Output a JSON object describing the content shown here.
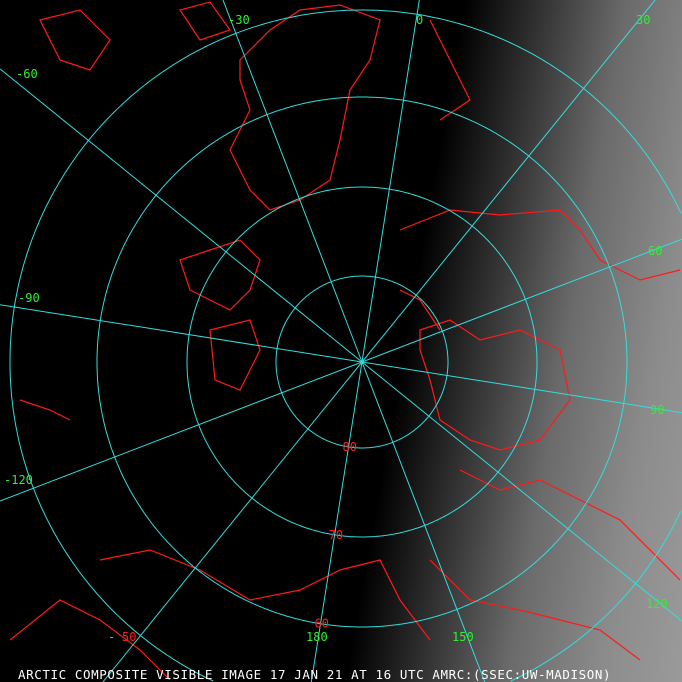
{
  "caption": "ARCTIC COMPOSITE VISIBLE IMAGE 17 JAN 21 AT 16 UTC AMRC:(SSEC:UW-MADISON)",
  "colors": {
    "graticule": "#33dddd",
    "coastline": "#ff1a1a",
    "longitude_label": "#33ee33",
    "latitude_label": "#ff2020",
    "caption": "#ffffff"
  },
  "projection": "polar stereographic (north pole)",
  "latitudes": [
    {
      "value": 80,
      "label": "80"
    },
    {
      "value": 70,
      "label": "70"
    },
    {
      "value": 60,
      "label": "60"
    },
    {
      "value": 50,
      "label": "50"
    }
  ],
  "longitudes": [
    {
      "value": 0,
      "label": "0"
    },
    {
      "value": 30,
      "label": "30"
    },
    {
      "value": 60,
      "label": "60"
    },
    {
      "value": 90,
      "label": "90"
    },
    {
      "value": 120,
      "label": "120"
    },
    {
      "value": 150,
      "label": "150"
    },
    {
      "value": 180,
      "label": "180"
    },
    {
      "value": -150,
      "label": "-"
    },
    {
      "value": -120,
      "label": "-120"
    },
    {
      "value": -90,
      "label": "-90"
    },
    {
      "value": -60,
      "label": "-60"
    },
    {
      "value": -30,
      "label": "-30"
    }
  ]
}
